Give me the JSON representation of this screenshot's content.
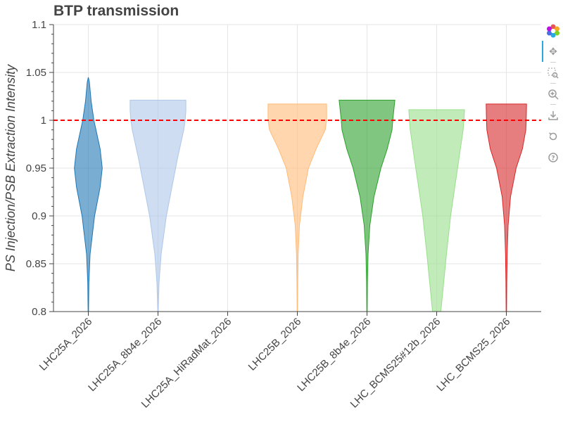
{
  "chart_data": {
    "type": "violin",
    "title": "BTP transmission",
    "xlabel": "",
    "ylabel": "PS Injection/PSB Extraction Intensity",
    "ylim": [
      0.8,
      1.1
    ],
    "yticks": [
      "0.8",
      "0.85",
      "0.9",
      "0.95",
      "1",
      "1.05",
      "1.1"
    ],
    "ytick_values": [
      0.8,
      0.85,
      0.9,
      0.95,
      1.0,
      1.05,
      1.1
    ],
    "categories": [
      "LHC25A_2026",
      "LHC25A_8b4e_2026",
      "LHC25A_HiRadMat_2026",
      "LHC25B_2026",
      "LHC25B_8b4e_2026",
      "LHC_BCMS25#12b_2026",
      "LHC_BCMS25_2026"
    ],
    "reference_line": {
      "y": 1.0,
      "color": "#ff0000",
      "style": "dashed"
    },
    "series": [
      {
        "name": "LHC25A_2026",
        "fill": "#1f77b4",
        "fill_alpha": 0.6,
        "stroke": "#1f77b4",
        "ymin": 0.8,
        "ymax": 1.045,
        "flat_top": false,
        "profile": [
          [
            0.8,
            0.003
          ],
          [
            0.83,
            0.008
          ],
          [
            0.86,
            0.025
          ],
          [
            0.9,
            0.09
          ],
          [
            0.93,
            0.17
          ],
          [
            0.95,
            0.2
          ],
          [
            0.97,
            0.17
          ],
          [
            0.99,
            0.11
          ],
          [
            1.0,
            0.08
          ],
          [
            1.02,
            0.04
          ],
          [
            1.04,
            0.015
          ],
          [
            1.045,
            0.0
          ]
        ]
      },
      {
        "name": "LHC25A_8b4e_2026",
        "fill": "#aec7e8",
        "fill_alpha": 0.6,
        "stroke": "#aec7e8",
        "ymin": 0.8,
        "ymax": 1.021,
        "flat_top": true,
        "profile": [
          [
            0.8,
            0.003
          ],
          [
            0.83,
            0.015
          ],
          [
            0.86,
            0.045
          ],
          [
            0.9,
            0.12
          ],
          [
            0.93,
            0.2
          ],
          [
            0.96,
            0.28
          ],
          [
            0.99,
            0.37
          ],
          [
            1.0,
            0.39
          ],
          [
            1.01,
            0.4
          ],
          [
            1.021,
            0.4
          ]
        ]
      },
      {
        "name": "LHC25A_HiRadMat_2026",
        "fill": "#ffffff",
        "fill_alpha": 0.0,
        "stroke": "#ffffff",
        "ymin": 0.8,
        "ymax": 0.8,
        "flat_top": false,
        "profile": []
      },
      {
        "name": "LHC25B_2026",
        "fill": "#ffbb78",
        "fill_alpha": 0.6,
        "stroke": "#ffbb78",
        "ymin": 0.8,
        "ymax": 1.017,
        "flat_top": true,
        "profile": [
          [
            0.8,
            0.003
          ],
          [
            0.83,
            0.006
          ],
          [
            0.86,
            0.012
          ],
          [
            0.89,
            0.03
          ],
          [
            0.92,
            0.08
          ],
          [
            0.95,
            0.16
          ],
          [
            0.97,
            0.27
          ],
          [
            0.99,
            0.4
          ],
          [
            1.0,
            0.42
          ],
          [
            1.017,
            0.42
          ]
        ]
      },
      {
        "name": "LHC25B_8b4e_2026",
        "fill": "#2ca02c",
        "fill_alpha": 0.6,
        "stroke": "#2ca02c",
        "ymin": 0.8,
        "ymax": 1.021,
        "flat_top": true,
        "profile": [
          [
            0.8,
            0.003
          ],
          [
            0.83,
            0.006
          ],
          [
            0.86,
            0.015
          ],
          [
            0.89,
            0.04
          ],
          [
            0.92,
            0.1
          ],
          [
            0.95,
            0.2
          ],
          [
            0.97,
            0.29
          ],
          [
            0.99,
            0.36
          ],
          [
            1.0,
            0.37
          ],
          [
            1.021,
            0.4
          ]
        ]
      },
      {
        "name": "LHC_BCMS25#12b_2026",
        "fill": "#98df8a",
        "fill_alpha": 0.6,
        "stroke": "#98df8a",
        "ymin": 0.8,
        "ymax": 1.011,
        "flat_top": true,
        "profile": [
          [
            0.8,
            0.06
          ],
          [
            0.83,
            0.1
          ],
          [
            0.86,
            0.14
          ],
          [
            0.9,
            0.2
          ],
          [
            0.93,
            0.26
          ],
          [
            0.96,
            0.32
          ],
          [
            0.99,
            0.38
          ],
          [
            1.0,
            0.39
          ],
          [
            1.011,
            0.4
          ]
        ]
      },
      {
        "name": "LHC_BCMS25_2026",
        "fill": "#d62728",
        "fill_alpha": 0.6,
        "stroke": "#d62728",
        "ymin": 0.8,
        "ymax": 1.017,
        "flat_top": true,
        "profile": [
          [
            0.8,
            0.003
          ],
          [
            0.83,
            0.006
          ],
          [
            0.86,
            0.012
          ],
          [
            0.89,
            0.025
          ],
          [
            0.92,
            0.06
          ],
          [
            0.95,
            0.14
          ],
          [
            0.97,
            0.23
          ],
          [
            0.99,
            0.28
          ],
          [
            1.0,
            0.285
          ],
          [
            1.017,
            0.29
          ]
        ]
      }
    ]
  },
  "toolbar": {
    "items": [
      {
        "name": "bokeh-logo-icon",
        "glyph": ""
      },
      {
        "name": "pan-icon",
        "glyph": "✥"
      },
      {
        "name": "box-zoom-icon",
        "glyph": "⬚"
      },
      {
        "name": "wheel-zoom-icon",
        "glyph": "⊕"
      },
      {
        "name": "save-icon",
        "glyph": "⤓"
      },
      {
        "name": "reset-icon",
        "glyph": "↺"
      },
      {
        "name": "help-icon",
        "glyph": "?"
      }
    ]
  }
}
